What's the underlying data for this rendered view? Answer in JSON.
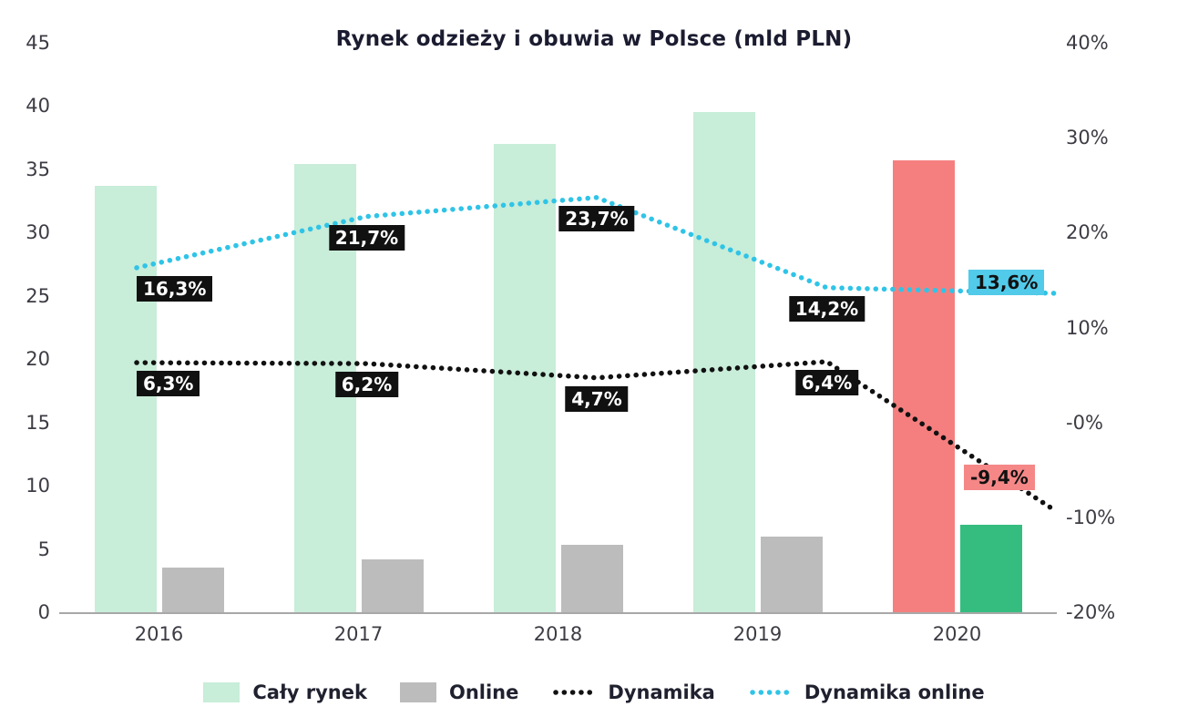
{
  "chart_data": {
    "type": "combo-bar-line",
    "title": "Rynek odzieży i obuwia w Polsce (mld PLN)",
    "categories": [
      "2016",
      "2017",
      "2018",
      "2019",
      "2020"
    ],
    "left_axis": {
      "min": 0,
      "max": 45,
      "ticks": [
        "0",
        "5",
        "10",
        "15",
        "20",
        "25",
        "30",
        "35",
        "40",
        "45"
      ]
    },
    "right_axis": {
      "min": -20,
      "max": 40,
      "ticks": [
        "-20%",
        "-10%",
        "-0%",
        "10%",
        "20%",
        "30%",
        "40%"
      ]
    },
    "series": [
      {
        "name": "Cały rynek",
        "type": "bar",
        "axis": "left",
        "values": [
          33.7,
          35.4,
          37.0,
          39.5,
          35.7
        ],
        "colors": [
          "#c8edd9",
          "#c8edd9",
          "#c8edd9",
          "#c8edd9",
          "#f57f7f"
        ]
      },
      {
        "name": "Online",
        "type": "bar",
        "axis": "left",
        "values": [
          3.5,
          4.2,
          5.3,
          6.0,
          6.9
        ],
        "colors": [
          "#bcbcbc",
          "#bcbcbc",
          "#bcbcbc",
          "#bcbcbc",
          "#35bd80"
        ]
      },
      {
        "name": "Dynamika",
        "type": "line",
        "axis": "right",
        "values": [
          6.3,
          6.2,
          4.7,
          6.4,
          -9.4
        ],
        "labels": [
          "6,3%",
          "6,2%",
          "4,7%",
          "6,4%",
          "-9,4%"
        ],
        "line_color": "#111111",
        "label_bg": "#111111",
        "label_color": "#ffffff",
        "last_label_bg": "#f58787",
        "last_label_color": "#111111"
      },
      {
        "name": "Dynamika online",
        "type": "line",
        "axis": "right",
        "values": [
          16.3,
          21.7,
          23.7,
          14.2,
          13.6
        ],
        "labels": [
          "16,3%",
          "21,7%",
          "23,7%",
          "14,2%",
          "13,6%"
        ],
        "line_color": "#2fc4e7",
        "label_bg": "#111111",
        "label_color": "#ffffff",
        "last_label_bg": "#52cae9",
        "last_label_color": "#111111"
      }
    ],
    "legend": [
      "Cały rynek",
      "Online",
      "Dynamika",
      "Dynamika online"
    ],
    "legend_position": "bottom",
    "grid": false
  }
}
